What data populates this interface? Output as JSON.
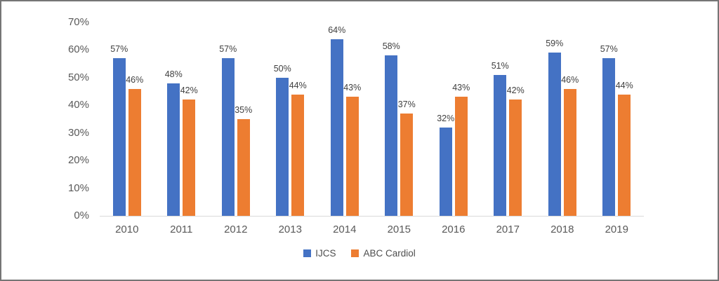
{
  "frame": {
    "background_color": "#ffffff",
    "border_color": "#757575"
  },
  "chart_data": {
    "type": "bar",
    "title": "",
    "xlabel": "",
    "ylabel": "",
    "categories": [
      "2010",
      "2011",
      "2012",
      "2013",
      "2014",
      "2015",
      "2016",
      "2017",
      "2018",
      "2019"
    ],
    "series": [
      {
        "name": "IJCS",
        "color": "#4472C4",
        "values": [
          57,
          48,
          57,
          50,
          64,
          58,
          32,
          51,
          59,
          57
        ]
      },
      {
        "name": "ABC Cardiol",
        "color": "#ED7D31",
        "values": [
          46,
          42,
          35,
          44,
          43,
          37,
          43,
          42,
          46,
          44
        ]
      }
    ],
    "data_labels": [
      "57%",
      "48%",
      "57%",
      "50%",
      "64%",
      "58%",
      "32%",
      "51%",
      "59%",
      "57%",
      "46%",
      "42%",
      "35%",
      "44%",
      "43%",
      "37%",
      "43%",
      "42%",
      "46%",
      "44%"
    ],
    "value_suffix": "%",
    "y_ticks": [
      "0%",
      "10%",
      "20%",
      "30%",
      "40%",
      "50%",
      "60%",
      "70%"
    ],
    "ylim": [
      0,
      70
    ],
    "grid": false,
    "legend_position": "bottom",
    "axis_text_color": "#595959",
    "label_text_color": "#404040",
    "axis_line_color": "#d9d9d9"
  }
}
